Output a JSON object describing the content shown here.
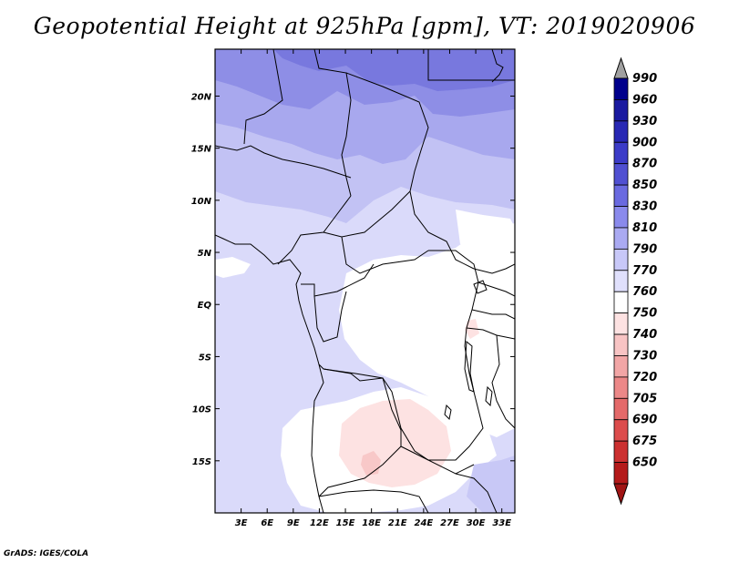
{
  "title": "Geopotential Height at 925hPa [gpm], VT: 2019020906",
  "credit": "GrADS: IGES/COLA",
  "map": {
    "lon_range": [
      0,
      34.5
    ],
    "lat_range": [
      -20,
      24.5
    ],
    "lon_ticks": [
      {
        "value": 3,
        "label": "3E"
      },
      {
        "value": 6,
        "label": "6E"
      },
      {
        "value": 9,
        "label": "9E"
      },
      {
        "value": 12,
        "label": "12E"
      },
      {
        "value": 15,
        "label": "15E"
      },
      {
        "value": 18,
        "label": "18E"
      },
      {
        "value": 21,
        "label": "21E"
      },
      {
        "value": 24,
        "label": "24E"
      },
      {
        "value": 27,
        "label": "27E"
      },
      {
        "value": 30,
        "label": "30E"
      },
      {
        "value": 33,
        "label": "33E"
      }
    ],
    "lat_ticks": [
      {
        "value": 20,
        "label": "20N"
      },
      {
        "value": 15,
        "label": "15N"
      },
      {
        "value": 10,
        "label": "10N"
      },
      {
        "value": 5,
        "label": "5N"
      },
      {
        "value": 0,
        "label": "EQ"
      },
      {
        "value": -5,
        "label": "5S"
      },
      {
        "value": -10,
        "label": "10S"
      },
      {
        "value": -15,
        "label": "15S"
      }
    ]
  },
  "colorbar": {
    "levels": [
      {
        "label": "990",
        "color": "#00008c"
      },
      {
        "label": "960",
        "color": "#1a1aa0"
      },
      {
        "label": "930",
        "color": "#2828b4"
      },
      {
        "label": "900",
        "color": "#3c3cc8"
      },
      {
        "label": "870",
        "color": "#5050d2"
      },
      {
        "label": "850",
        "color": "#6a6ae0"
      },
      {
        "label": "830",
        "color": "#8a8aec"
      },
      {
        "label": "810",
        "color": "#aaaaf2"
      },
      {
        "label": "790",
        "color": "#c8c8f8"
      },
      {
        "label": "770",
        "color": "#e0e0fc"
      },
      {
        "label": "760",
        "color": "#ffffff"
      },
      {
        "label": "750",
        "color": "#fde2e2"
      },
      {
        "label": "740",
        "color": "#f8c4c4"
      },
      {
        "label": "730",
        "color": "#f2a6a6"
      },
      {
        "label": "720",
        "color": "#ec8888"
      },
      {
        "label": "705",
        "color": "#e46a6a"
      },
      {
        "label": "690",
        "color": "#dc4c4c"
      },
      {
        "label": "675",
        "color": "#cc3030"
      },
      {
        "label": "650",
        "color": "#b41a1a"
      }
    ],
    "top_arrow_color": "#a0a0a0",
    "bottom_arrow_color": "#a01414"
  }
}
